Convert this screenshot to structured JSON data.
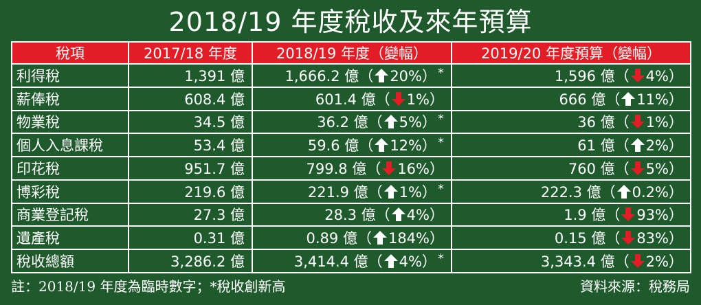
{
  "chart_data": {
    "type": "table",
    "title": "2018/19 年度稅收及來年預算",
    "columns": [
      "稅項",
      "2017/18 年度",
      "2018/19 年度（變幅）",
      "2019/20 年度預算（變幅）"
    ],
    "rows": [
      {
        "item": "利得稅",
        "y1718": "1,391 億",
        "y1819": "1,666.2 億",
        "y1819_dir": "up",
        "y1819_chg": "20%",
        "y1819_record": true,
        "y1920": "1,596 億",
        "y1920_dir": "down",
        "y1920_chg": "4%"
      },
      {
        "item": "薪俸稅",
        "y1718": "608.4 億",
        "y1819": "601.4 億",
        "y1819_dir": "down",
        "y1819_chg": "1%",
        "y1819_record": false,
        "y1920": "666 億",
        "y1920_dir": "up",
        "y1920_chg": "11%"
      },
      {
        "item": "物業稅",
        "y1718": "34.5 億",
        "y1819": "36.2 億",
        "y1819_dir": "up",
        "y1819_chg": "5%",
        "y1819_record": true,
        "y1920": "36 億",
        "y1920_dir": "down",
        "y1920_chg": "1%"
      },
      {
        "item": "個人入息課稅",
        "y1718": "53.4 億",
        "y1819": "59.6 億",
        "y1819_dir": "up",
        "y1819_chg": "12%",
        "y1819_record": true,
        "y1920": "61 億",
        "y1920_dir": "up",
        "y1920_chg": "2%"
      },
      {
        "item": "印花稅",
        "y1718": "951.7 億",
        "y1819": "799.8 億",
        "y1819_dir": "down",
        "y1819_chg": "16%",
        "y1819_record": false,
        "y1920": "760 億",
        "y1920_dir": "down",
        "y1920_chg": "5%"
      },
      {
        "item": "博彩稅",
        "y1718": "219.6 億",
        "y1819": "221.9 億",
        "y1819_dir": "up",
        "y1819_chg": "1%",
        "y1819_record": true,
        "y1920": "222.3 億",
        "y1920_dir": "up",
        "y1920_chg": "0.2%"
      },
      {
        "item": "商業登記稅",
        "y1718": "27.3 億",
        "y1819": "28.3 億",
        "y1819_dir": "up",
        "y1819_chg": "4%",
        "y1819_record": false,
        "y1920": "1.9 億",
        "y1920_dir": "down",
        "y1920_chg": "93%"
      },
      {
        "item": "遺產稅",
        "y1718": "0.31 億",
        "y1819": "0.89 億",
        "y1819_dir": "up",
        "y1819_chg": "184%",
        "y1819_record": false,
        "y1920": "0.15 億",
        "y1920_dir": "down",
        "y1920_chg": "83%"
      },
      {
        "item": "稅收總額",
        "y1718": "3,286.2 億",
        "y1819": "3,414.4 億",
        "y1819_dir": "up",
        "y1819_chg": "4%",
        "y1819_record": true,
        "y1920": "3,343.4 億",
        "y1920_dir": "down",
        "y1920_chg": "2%"
      }
    ],
    "record_mark": "*",
    "footnote": "註：2018/19 年度為臨時數字；*稅收創新高",
    "source": "資料來源：稅務局"
  },
  "colors": {
    "background": "#1f5a2c",
    "header": "#e21d25",
    "text": "#ffffff",
    "arrow_up": "#ffffff",
    "arrow_down": "#e21d25"
  }
}
